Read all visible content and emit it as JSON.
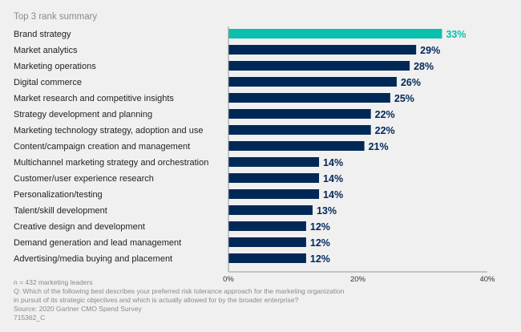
{
  "chart_data": {
    "type": "bar",
    "orientation": "horizontal",
    "subtitle": "Top 3 rank summary",
    "categories": [
      "Brand strategy",
      "Market analytics",
      "Marketing operations",
      "Digital commerce",
      "Market research and competitive insights",
      "Strategy development and planning",
      "Marketing technology strategy, adoption and use",
      "Content/campaign creation and management",
      "Multichannel marketing strategy and orchestration",
      "Customer/user experience research",
      "Personalization/testing",
      "Talent/skill development",
      "Creative design and development",
      "Demand generation and lead management",
      "Advertising/media buying and placement"
    ],
    "values": [
      33,
      29,
      28,
      26,
      25,
      22,
      22,
      21,
      14,
      14,
      14,
      13,
      12,
      12,
      12
    ],
    "value_labels": [
      "33%",
      "29%",
      "28%",
      "26%",
      "25%",
      "22%",
      "22%",
      "21%",
      "14%",
      "14%",
      "14%",
      "13%",
      "12%",
      "12%",
      "12%"
    ],
    "xlim": [
      0,
      40
    ],
    "xticks": [
      "0%",
      "20%",
      "40%"
    ],
    "grid": false,
    "colors": {
      "highlight": "#0bbfad",
      "default": "#002856"
    }
  },
  "footer": {
    "n": "n = 432 marketing leaders",
    "q1": "Q: Which of the following best describes your preferred risk tolerance approach for the marketing organization",
    "q2": "in pursuit of its strategic objectives and which is actually allowed for by the broader enterprise?",
    "source": "Source: 2020 Gartner CMO Spend Survey",
    "id": "715362_C"
  }
}
